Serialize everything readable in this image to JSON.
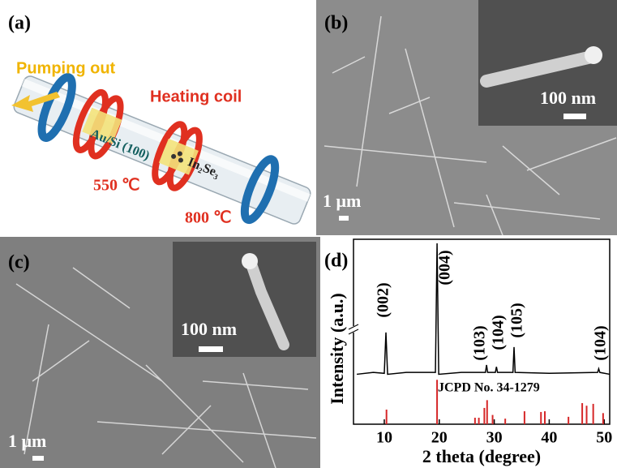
{
  "panel_a": {
    "label": "(a)",
    "pumping": "Pumping out",
    "heating": "Heating coil",
    "substrate": "Au/Si (100)",
    "source": "In₂Se₃",
    "temp_substrate": "550 ℃",
    "temp_source": "800 ℃"
  },
  "panel_b": {
    "label": "(b)",
    "inset_scale": "100 nm",
    "scale": "1 μm"
  },
  "panel_c": {
    "label": "(c)",
    "inset_scale": "100 nm",
    "scale": "1 μm"
  },
  "chart_data": {
    "type": "line",
    "label": "(d)",
    "xlabel": "2 theta (degree)",
    "ylabel": "Intensity (a.u.)",
    "xlim": [
      4.4,
      51
    ],
    "xticks": [
      10,
      20,
      30,
      40,
      50
    ],
    "ylim": [
      0,
      100
    ],
    "series": [
      {
        "color": "#000000",
        "x": [
          5.0,
          8.0,
          10.0,
          10.3,
          10.6,
          14.0,
          19.3,
          19.6,
          19.9,
          24.0,
          28.4,
          28.6,
          28.8,
          30.2,
          30.4,
          30.6,
          33.4,
          33.6,
          33.8,
          40.0,
          48.8,
          49.0,
          49.2,
          51.0
        ],
        "values": [
          27,
          28,
          27.5,
          49.6,
          27,
          28,
          28,
          97.8,
          27,
          28,
          28,
          32,
          28,
          28,
          31,
          28,
          28,
          41.7,
          28,
          27.5,
          28,
          30,
          28,
          27
        ]
      }
    ],
    "reference": {
      "name": "JCPD No. 34-1279",
      "color": "#d62728",
      "x": [
        10.4,
        19.6,
        26.5,
        27.2,
        28.2,
        28.7,
        29.7,
        32.0,
        35.5,
        38.5,
        39.2,
        43.5,
        46.0,
        46.8,
        48.0,
        49.8
      ],
      "values": [
        7.9,
        24,
        3.5,
        3.5,
        8.8,
        13,
        5,
        3,
        7,
        6.6,
        7,
        4,
        11.4,
        10,
        11,
        6
      ]
    },
    "annotations": [
      "(002)",
      "(004)",
      "(103)",
      "(104)",
      "(105)",
      "(104)"
    ]
  }
}
